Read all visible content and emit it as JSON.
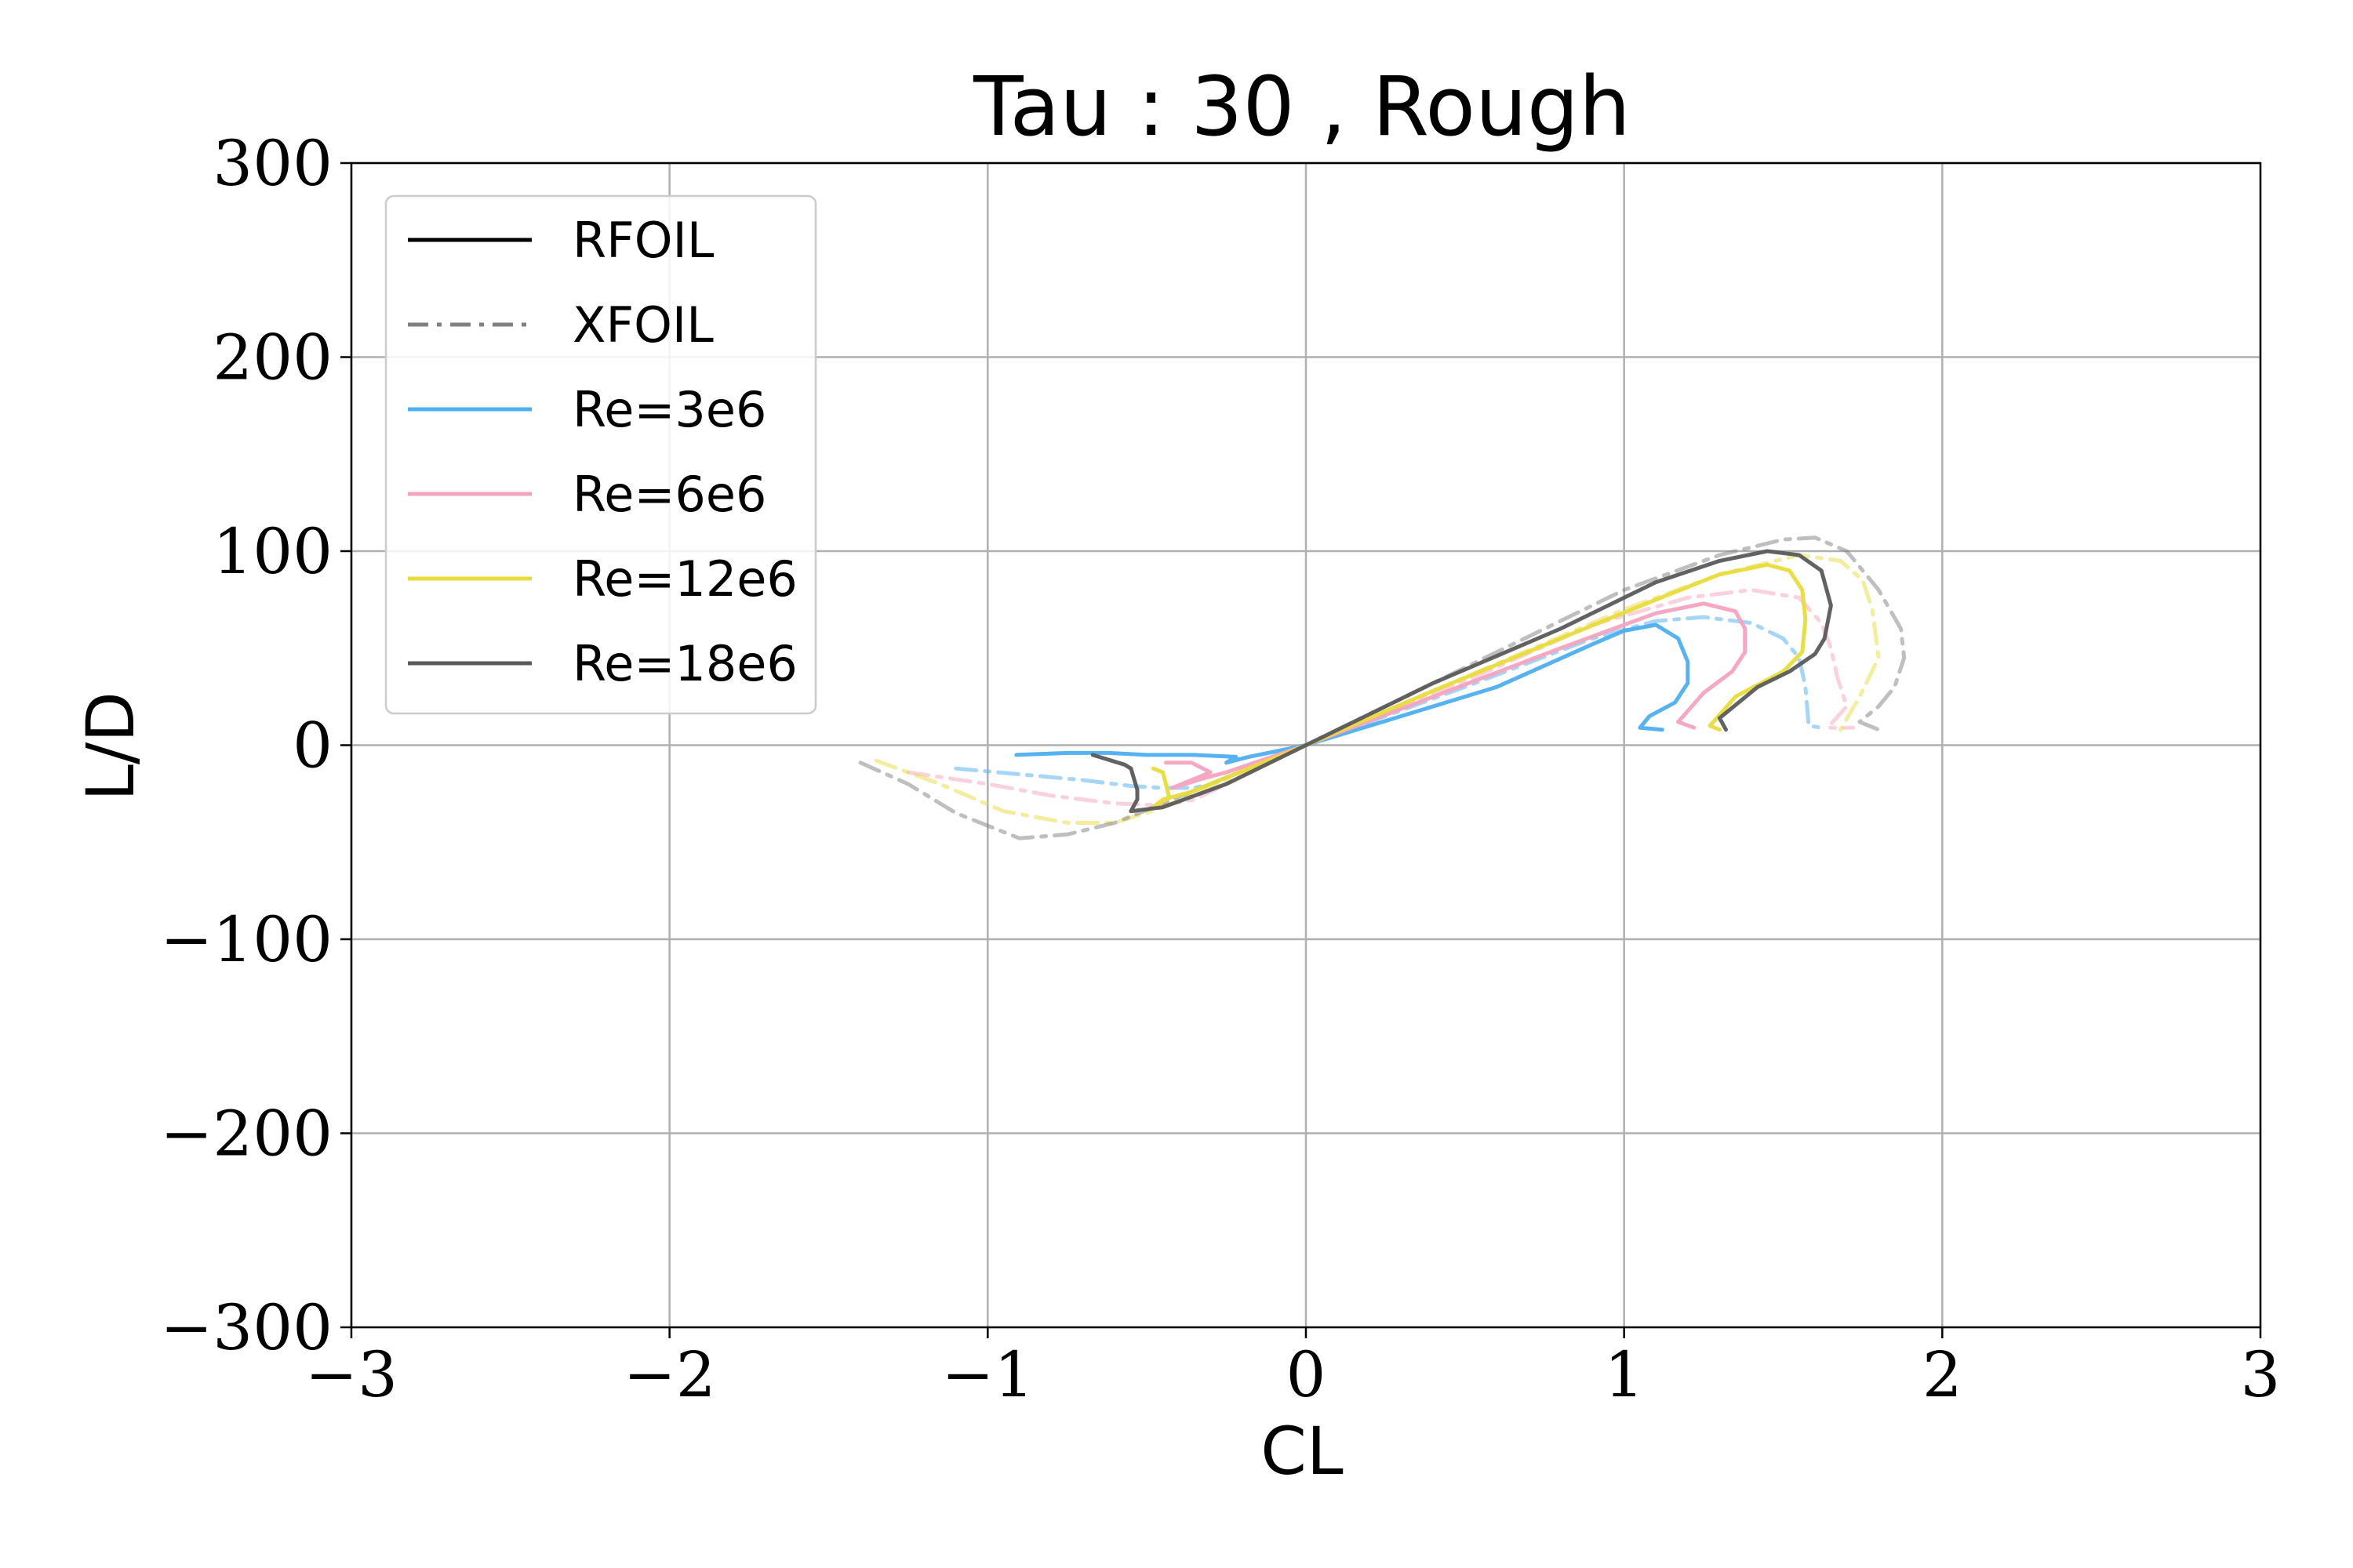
{
  "chart_data": {
    "type": "line",
    "title": "Tau : 30 , Rough",
    "xlabel": "CL",
    "ylabel": "L/D",
    "xlim": [
      -3,
      3
    ],
    "ylim": [
      -300,
      300
    ],
    "xticks": [
      -3,
      -2,
      -1,
      0,
      1,
      2,
      3
    ],
    "yticks": [
      -300,
      -200,
      -100,
      0,
      100,
      200,
      300
    ],
    "xtick_labels": [
      "−3",
      "−2",
      "−1",
      "0",
      "1",
      "2",
      "3"
    ],
    "ytick_labels": [
      "−300",
      "−200",
      "−100",
      "0",
      "100",
      "200",
      "300"
    ],
    "grid": true,
    "legend_position": "top-left",
    "legend": [
      {
        "label": "RFOIL",
        "color": "#000000",
        "style": "solid"
      },
      {
        "label": "XFOIL",
        "color": "#808080",
        "style": "dashdot"
      },
      {
        "label": "Re=3e6",
        "color": "#4daef0",
        "style": "solid"
      },
      {
        "label": "Re=6e6",
        "color": "#f5a3c0",
        "style": "solid"
      },
      {
        "label": "Re=12e6",
        "color": "#e8dc3c",
        "style": "solid"
      },
      {
        "label": "Re=18e6",
        "color": "#5a5a5a",
        "style": "solid"
      }
    ],
    "series": [
      {
        "name": "Re=3e6",
        "model": "RFOIL",
        "color": "#4daef0",
        "style": "solid",
        "x": [
          -0.91,
          -0.75,
          -0.62,
          -0.5,
          -0.35,
          -0.22,
          -0.25,
          -0.18,
          0,
          0.3,
          0.6,
          0.9,
          1.0,
          1.1,
          1.17,
          1.2,
          1.2,
          1.16,
          1.08,
          1.05,
          1.12
        ],
        "y": [
          -5,
          -4,
          -4,
          -5,
          -5,
          -6,
          -9,
          -6,
          0,
          15,
          30,
          52,
          59,
          62,
          55,
          43,
          32,
          22,
          15,
          9,
          8
        ]
      },
      {
        "name": "Re=3e6",
        "model": "XFOIL",
        "color": "#4daef0",
        "style": "dashdot",
        "x": [
          -1.1,
          -0.9,
          -0.7,
          -0.55,
          -0.45,
          -0.35,
          -0.3,
          0,
          0.5,
          0.9,
          1.1,
          1.25,
          1.4,
          1.5,
          1.55,
          1.57,
          1.58,
          1.62
        ],
        "y": [
          -12,
          -15,
          -18,
          -21,
          -22,
          -22,
          -20,
          0,
          30,
          55,
          64,
          66,
          63,
          55,
          45,
          30,
          10,
          9
        ]
      },
      {
        "name": "Re=6e6",
        "model": "RFOIL",
        "color": "#f5a3c0",
        "style": "solid",
        "x": [
          -0.44,
          -0.36,
          -0.3,
          -0.36,
          -0.42,
          -0.32,
          -0.25,
          0,
          0.4,
          0.8,
          1.1,
          1.25,
          1.35,
          1.38,
          1.38,
          1.34,
          1.25,
          1.17,
          1.22
        ],
        "y": [
          -9,
          -9,
          -14,
          -18,
          -22,
          -17,
          -14,
          0,
          25,
          50,
          68,
          73,
          69,
          60,
          48,
          38,
          27,
          12,
          9
        ]
      },
      {
        "name": "Re=6e6",
        "model": "XFOIL",
        "color": "#f5a3c0",
        "style": "dashdot",
        "x": [
          -1.25,
          -1.0,
          -0.8,
          -0.6,
          -0.45,
          -0.35,
          0,
          0.5,
          0.9,
          1.2,
          1.4,
          1.55,
          1.62,
          1.65,
          1.67,
          1.7,
          1.64,
          1.72
        ],
        "y": [
          -14,
          -20,
          -26,
          -30,
          -31,
          -28,
          0,
          33,
          62,
          76,
          80,
          76,
          63,
          50,
          35,
          20,
          9,
          9
        ]
      },
      {
        "name": "Re=12e6",
        "model": "RFOIL",
        "color": "#e8dc3c",
        "style": "solid",
        "x": [
          -0.48,
          -0.45,
          -0.44,
          -0.43,
          -0.48,
          -0.45,
          -0.36,
          0,
          0.4,
          0.8,
          1.1,
          1.3,
          1.45,
          1.52,
          1.56,
          1.57,
          1.56,
          1.5,
          1.35,
          1.27,
          1.3
        ],
        "y": [
          -12,
          -14,
          -20,
          -27,
          -32,
          -28,
          -24,
          0,
          28,
          55,
          75,
          88,
          93,
          90,
          80,
          65,
          48,
          38,
          25,
          10,
          8
        ]
      },
      {
        "name": "Re=12e6",
        "model": "XFOIL",
        "color": "#e8dc3c",
        "style": "dashdot",
        "x": [
          -1.35,
          -1.15,
          -0.95,
          -0.75,
          -0.6,
          -0.45,
          0,
          0.5,
          1.0,
          1.3,
          1.55,
          1.68,
          1.75,
          1.78,
          1.8,
          1.74,
          1.68
        ],
        "y": [
          -8,
          -20,
          -34,
          -40,
          -40,
          -32,
          0,
          35,
          70,
          88,
          98,
          95,
          85,
          70,
          45,
          25,
          8
        ]
      },
      {
        "name": "Re=18e6",
        "model": "RFOIL",
        "color": "#5a5a5a",
        "style": "solid",
        "x": [
          -0.67,
          -0.57,
          -0.55,
          -0.53,
          -0.53,
          -0.55,
          -0.45,
          -0.25,
          0,
          0.4,
          0.8,
          1.1,
          1.3,
          1.45,
          1.55,
          1.62,
          1.65,
          1.63,
          1.6,
          1.52,
          1.42,
          1.3,
          1.32
        ],
        "y": [
          -5,
          -10,
          -12,
          -23,
          -28,
          -34,
          -32,
          -20,
          0,
          32,
          60,
          84,
          95,
          100,
          98,
          90,
          72,
          55,
          47,
          38,
          30,
          14,
          8
        ]
      },
      {
        "name": "Re=18e6",
        "model": "XFOIL",
        "color": "#808080",
        "style": "dashdot",
        "x": [
          -1.4,
          -1.25,
          -1.1,
          -0.9,
          -0.75,
          -0.6,
          0,
          0.5,
          1.0,
          1.3,
          1.5,
          1.6,
          1.7,
          1.8,
          1.87,
          1.88,
          1.85,
          1.8,
          1.74,
          1.8
        ],
        "y": [
          -9,
          -20,
          -35,
          -48,
          -46,
          -40,
          0,
          40,
          80,
          98,
          106,
          107,
          100,
          80,
          60,
          45,
          30,
          20,
          12,
          8
        ]
      }
    ]
  }
}
